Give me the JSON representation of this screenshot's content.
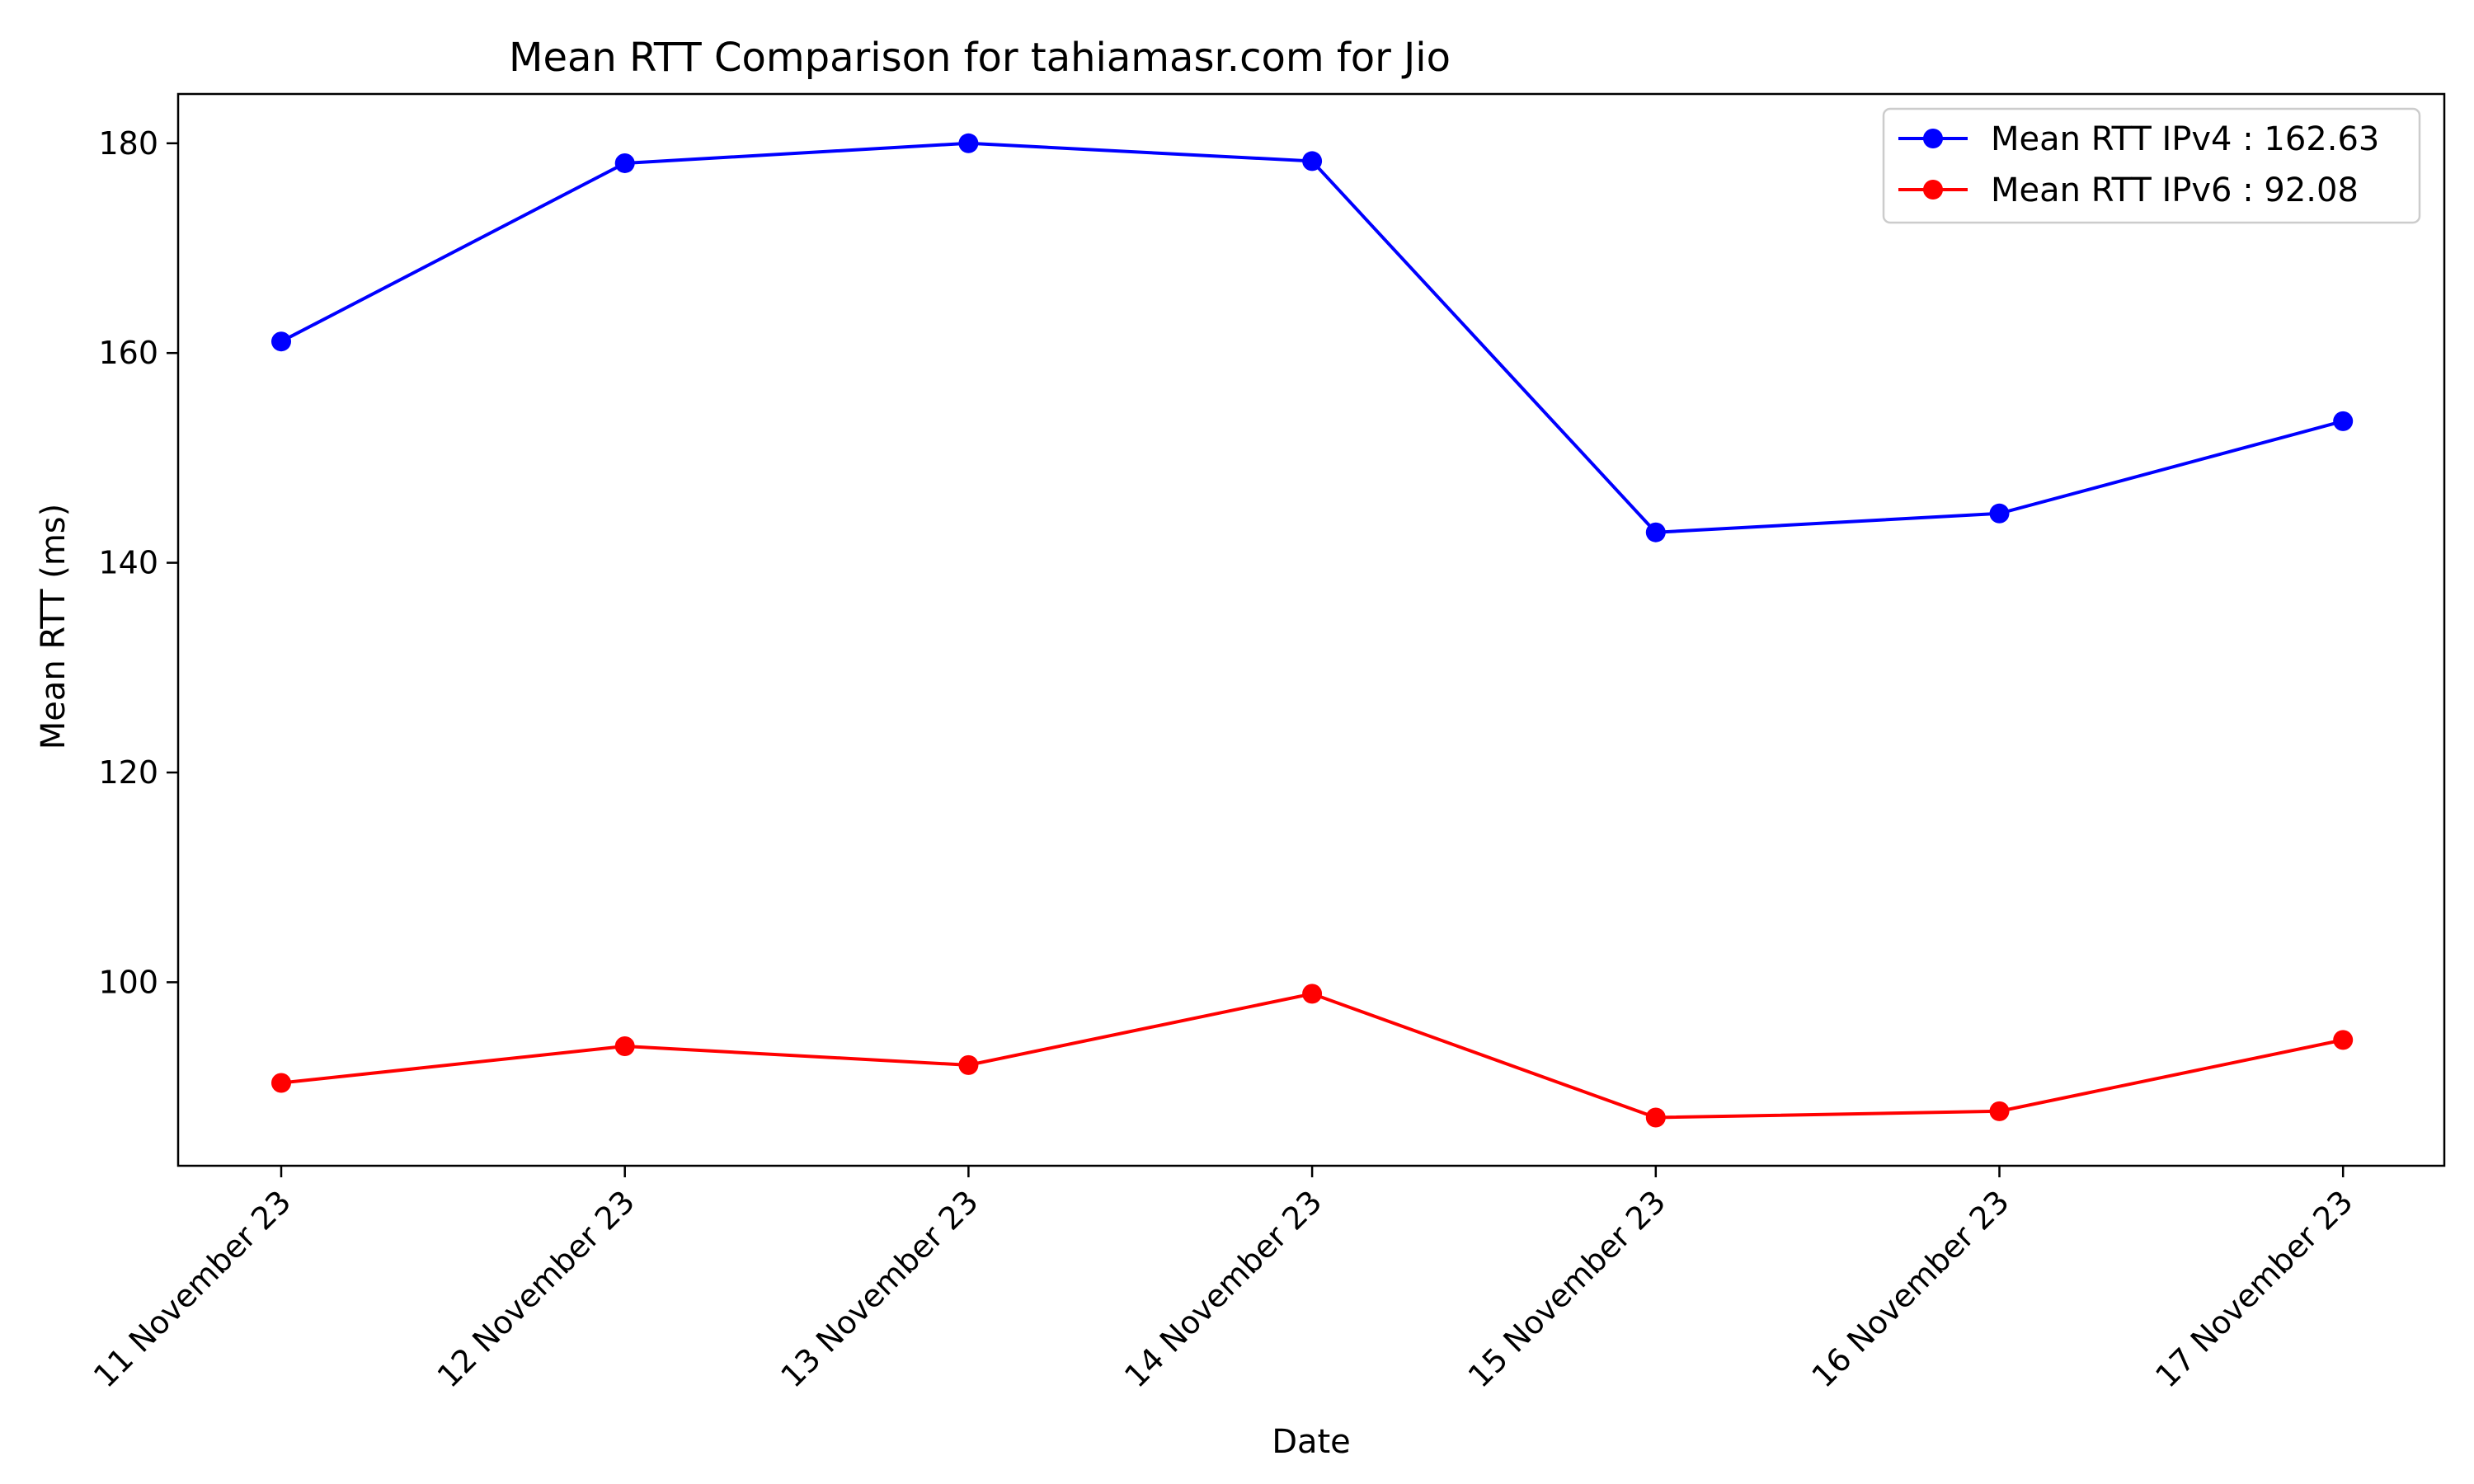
{
  "chart_data": {
    "type": "line",
    "title": "Mean RTT Comparison for tahiamasr.com for Jio",
    "xlabel": "Date",
    "ylabel": "Mean RTT (ms)",
    "categories": [
      "11 November 23",
      "12 November 23",
      "13 November 23",
      "14 November 23",
      "15 November 23",
      "16 November 23",
      "17 November 23"
    ],
    "series": [
      {
        "name": "Mean RTT IPv4 : 162.63",
        "color": "#0000ff",
        "values": [
          161.1,
          178.1,
          180.0,
          178.3,
          142.9,
          144.7,
          153.5
        ]
      },
      {
        "name": "Mean RTT IPv6 : 92.08",
        "color": "#ff0000",
        "values": [
          90.4,
          93.9,
          92.1,
          98.9,
          87.1,
          87.7,
          94.5
        ]
      }
    ],
    "ylim": [
      82.5,
      184.7
    ],
    "yticks": [
      100,
      120,
      140,
      160,
      180
    ],
    "grid": false,
    "legend_position": "top-right"
  }
}
